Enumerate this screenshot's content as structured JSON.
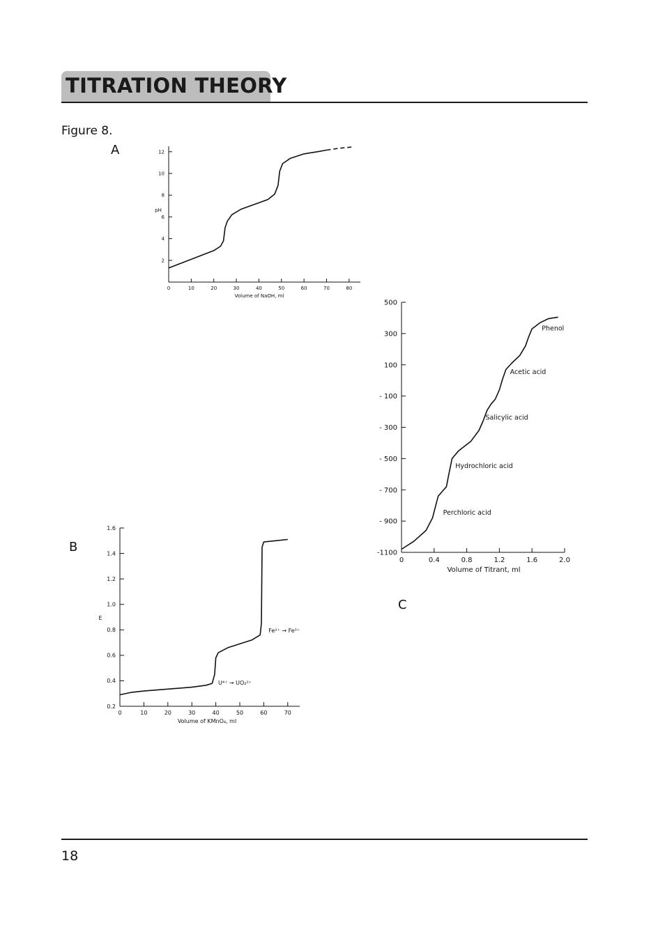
{
  "header": {
    "title": "TITRATION THEORY"
  },
  "figure": {
    "caption": "Figure 8.",
    "labels": {
      "a": "A",
      "b": "B",
      "c": "C"
    }
  },
  "footer": {
    "page_number": "18"
  },
  "chart_data": [
    {
      "id": "A",
      "type": "line",
      "title": "",
      "xlabel": "Volume of NaOH, ml",
      "ylabel": "pH",
      "xlim": [
        0,
        85
      ],
      "ylim": [
        0,
        12.5
      ],
      "x_ticks": [
        0,
        10,
        20,
        30,
        40,
        50,
        60,
        70,
        80
      ],
      "x_tick_labels": [
        "0",
        "10",
        "20",
        "30",
        "40",
        "50",
        "60",
        "70",
        "80"
      ],
      "y_ticks": [
        2,
        4,
        6,
        8,
        10,
        12
      ],
      "y_tick_labels": [
        "2",
        "4",
        "6",
        "8",
        "10",
        "12"
      ],
      "series": [
        {
          "values": [
            [
              0,
              1.3
            ],
            [
              5,
              1.7
            ],
            [
              10,
              2.1
            ],
            [
              15,
              2.5
            ],
            [
              20,
              2.9
            ],
            [
              23,
              3.3
            ],
            [
              24.3,
              3.8
            ],
            [
              25,
              5.0
            ],
            [
              26,
              5.6
            ],
            [
              28,
              6.2
            ],
            [
              32,
              6.7
            ],
            [
              36,
              7.0
            ],
            [
              40,
              7.3
            ],
            [
              44,
              7.6
            ],
            [
              47,
              8.1
            ],
            [
              48.5,
              8.9
            ],
            [
              49.2,
              10.2
            ],
            [
              50.5,
              10.9
            ],
            [
              54,
              11.4
            ],
            [
              60,
              11.8
            ],
            [
              66,
              12.0
            ],
            [
              70,
              12.15
            ]
          ]
        },
        {
          "dashed": true,
          "values": [
            [
              70,
              12.15
            ],
            [
              75,
              12.3
            ],
            [
              82,
              12.45
            ]
          ]
        }
      ]
    },
    {
      "id": "B",
      "type": "line",
      "title": "",
      "xlabel": "Volume of KMnO₄, ml",
      "ylabel": "E",
      "xlim": [
        0,
        75
      ],
      "ylim": [
        0.2,
        1.6
      ],
      "x_ticks": [
        0,
        10,
        20,
        30,
        40,
        50,
        60,
        70
      ],
      "x_tick_labels": [
        "0",
        "10",
        "20",
        "30",
        "40",
        "50",
        "60",
        "70"
      ],
      "y_ticks": [
        0.2,
        0.4,
        0.6,
        0.8,
        1.0,
        1.2,
        1.4,
        1.6
      ],
      "y_tick_labels": [
        "0.2",
        "0.4",
        "0.6",
        "0.8",
        "1.0",
        "1.2",
        "1.4",
        "1.6"
      ],
      "series": [
        {
          "values": [
            [
              0,
              0.29
            ],
            [
              5,
              0.31
            ],
            [
              10,
              0.32
            ],
            [
              20,
              0.335
            ],
            [
              30,
              0.35
            ],
            [
              36,
              0.365
            ],
            [
              38.5,
              0.38
            ],
            [
              39.5,
              0.45
            ],
            [
              40,
              0.58
            ],
            [
              41,
              0.62
            ],
            [
              45,
              0.66
            ],
            [
              50,
              0.69
            ],
            [
              55,
              0.72
            ],
            [
              58.5,
              0.76
            ],
            [
              59,
              0.85
            ],
            [
              59.3,
              1.45
            ],
            [
              60,
              1.49
            ],
            [
              65,
              1.5
            ],
            [
              70,
              1.51
            ]
          ]
        }
      ],
      "annotations": [
        {
          "text": "U⁴⁺ → UO₂²⁺",
          "x": 41,
          "y": 0.37
        },
        {
          "text": "Fe²⁺ → Fe³⁺",
          "x": 62,
          "y": 0.78
        }
      ]
    },
    {
      "id": "C",
      "type": "line",
      "title": "",
      "xlabel": "Volume of Titrant, ml",
      "ylabel": "",
      "xlim": [
        0,
        2.0
      ],
      "ylim": [
        -1100,
        500
      ],
      "x_ticks": [
        0,
        0.4,
        0.8,
        1.2,
        1.6,
        2.0
      ],
      "x_tick_labels": [
        "0",
        "0.4",
        "0.8",
        "1.2",
        "1.6",
        "2.0"
      ],
      "y_ticks": [
        -1100,
        -900,
        -700,
        -500,
        -300,
        -100,
        100,
        300,
        500
      ],
      "y_tick_labels": [
        "-1100",
        "- 900",
        "- 700",
        "- 500",
        "- 300",
        "- 100",
        "100",
        "300",
        "500"
      ],
      "series": [
        {
          "values": [
            [
              0,
              -1080
            ],
            [
              0.15,
              -1030
            ],
            [
              0.3,
              -960
            ],
            [
              0.38,
              -880
            ],
            [
              0.42,
              -800
            ],
            [
              0.45,
              -740
            ],
            [
              0.5,
              -710
            ],
            [
              0.55,
              -680
            ],
            [
              0.58,
              -600
            ],
            [
              0.62,
              -500
            ],
            [
              0.7,
              -450
            ],
            [
              0.85,
              -390
            ],
            [
              0.95,
              -320
            ],
            [
              1.0,
              -260
            ],
            [
              1.05,
              -190
            ],
            [
              1.1,
              -150
            ],
            [
              1.15,
              -120
            ],
            [
              1.2,
              -60
            ],
            [
              1.24,
              10
            ],
            [
              1.28,
              70
            ],
            [
              1.35,
              110
            ],
            [
              1.45,
              160
            ],
            [
              1.52,
              220
            ],
            [
              1.56,
              280
            ],
            [
              1.6,
              330
            ],
            [
              1.7,
              370
            ],
            [
              1.8,
              395
            ],
            [
              1.92,
              405
            ]
          ]
        }
      ],
      "annotations": [
        {
          "text": "Phenol",
          "x": 1.72,
          "y": 320
        },
        {
          "text": "Acetic acid",
          "x": 1.33,
          "y": 40
        },
        {
          "text": "Salicylic acid",
          "x": 1.03,
          "y": -250
        },
        {
          "text": "Hydrochloric acid",
          "x": 0.66,
          "y": -560
        },
        {
          "text": "Perchloric acid",
          "x": 0.51,
          "y": -860
        }
      ]
    }
  ]
}
